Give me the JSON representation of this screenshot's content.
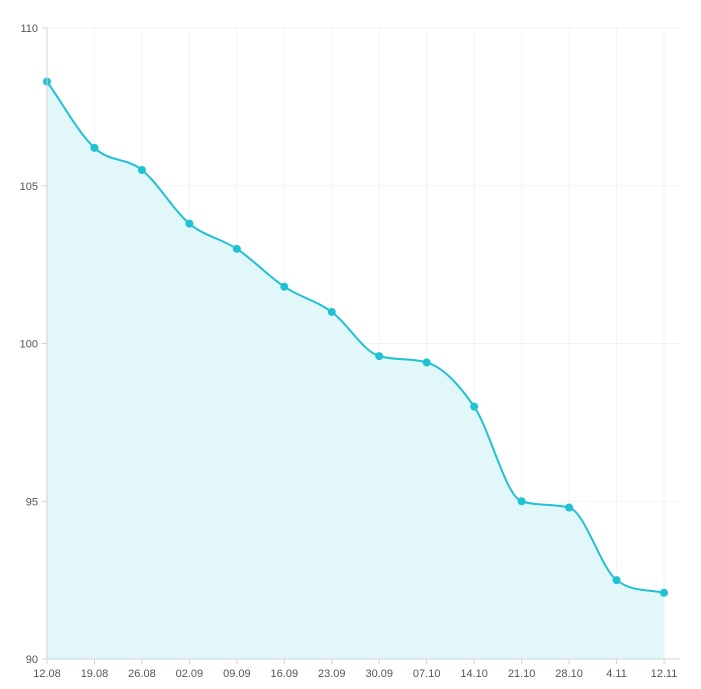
{
  "chart_data": {
    "type": "area",
    "title": "",
    "xlabel": "",
    "ylabel": "",
    "categories": [
      "12.08",
      "19.08",
      "26.08",
      "02.09",
      "09.09",
      "16.09",
      "23.09",
      "30.09",
      "07.10",
      "14.10",
      "21.10",
      "28.10",
      "4.11",
      "12.11"
    ],
    "series": [
      {
        "values": [
          108.3,
          106.2,
          105.5,
          103.8,
          103.0,
          101.8,
          101.0,
          99.6,
          99.4,
          98.0,
          95.0,
          94.8,
          92.5,
          92.1
        ]
      }
    ],
    "ylim": [
      90,
      110
    ],
    "yticks": [
      90,
      95,
      100,
      105,
      110
    ],
    "ytick_labels": [
      "90",
      "95",
      "100",
      "105",
      "110"
    ],
    "grid": true,
    "smooth": true,
    "colors": {
      "line": "#1ec2d3",
      "fill": "#e1f7fa",
      "point": "#1ec2d3",
      "grid": "#f0f3f5",
      "axis": "#d0d4d8",
      "tick_text": "#555555"
    }
  }
}
